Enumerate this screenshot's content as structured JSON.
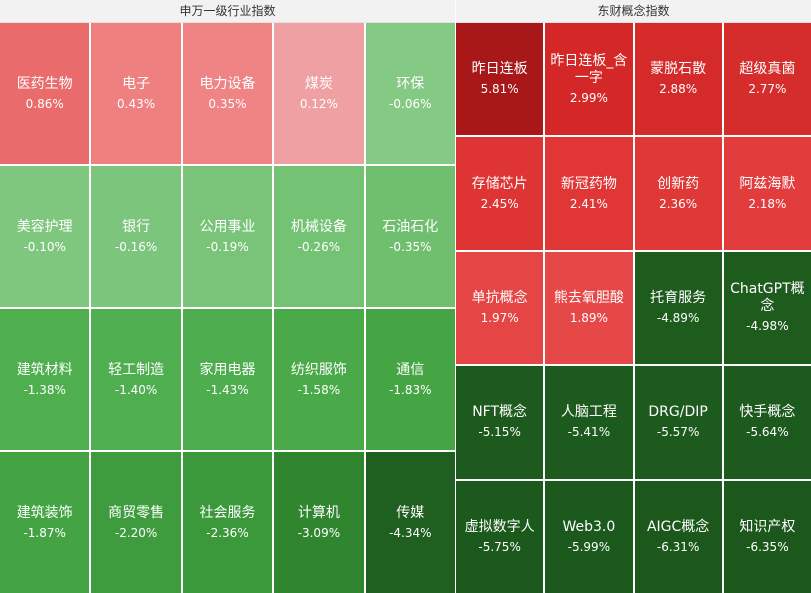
{
  "left_panel": {
    "title": "申万一级行业指数",
    "tiles": [
      {
        "name": "医药生物",
        "pct": "0.86%",
        "color": "#ea6b6b"
      },
      {
        "name": "电子",
        "pct": "0.43%",
        "color": "#ef8080"
      },
      {
        "name": "电力设备",
        "pct": "0.35%",
        "color": "#f08484"
      },
      {
        "name": "煤炭",
        "pct": "0.12%",
        "color": "#eea0a3"
      },
      {
        "name": "环保",
        "pct": "-0.06%",
        "color": "#84c984"
      },
      {
        "name": "美容护理",
        "pct": "-0.10%",
        "color": "#7fc77f"
      },
      {
        "name": "银行",
        "pct": "-0.16%",
        "color": "#7cc57c"
      },
      {
        "name": "公用事业",
        "pct": "-0.19%",
        "color": "#79c479"
      },
      {
        "name": "机械设备",
        "pct": "-0.26%",
        "color": "#74c274"
      },
      {
        "name": "石油石化",
        "pct": "-0.35%",
        "color": "#6fbf6f"
      },
      {
        "name": "建筑材料",
        "pct": "-1.38%",
        "color": "#4faf4f"
      },
      {
        "name": "轻工制造",
        "pct": "-1.40%",
        "color": "#4fae4f"
      },
      {
        "name": "家用电器",
        "pct": "-1.43%",
        "color": "#4ead4e"
      },
      {
        "name": "纺织服饰",
        "pct": "-1.58%",
        "color": "#4aaa4a"
      },
      {
        "name": "通信",
        "pct": "-1.83%",
        "color": "#45a545"
      },
      {
        "name": "建筑装饰",
        "pct": "-1.87%",
        "color": "#44a444"
      },
      {
        "name": "商贸零售",
        "pct": "-2.20%",
        "color": "#3e9c3e"
      },
      {
        "name": "社会服务",
        "pct": "-2.36%",
        "color": "#3b983b"
      },
      {
        "name": "计算机",
        "pct": "-3.09%",
        "color": "#2f862f"
      },
      {
        "name": "传媒",
        "pct": "-4.34%",
        "color": "#1f5f1f"
      }
    ]
  },
  "right_panel": {
    "title": "东财概念指数",
    "tiles": [
      {
        "name": "昨日连板",
        "pct": "5.81%",
        "color": "#a81818"
      },
      {
        "name": "昨日连板_含一字",
        "pct": "2.99%",
        "color": "#d42828"
      },
      {
        "name": "蒙脱石散",
        "pct": "2.88%",
        "color": "#d42a2a"
      },
      {
        "name": "超级真菌",
        "pct": "2.77%",
        "color": "#d52c2c"
      },
      {
        "name": "存储芯片",
        "pct": "2.45%",
        "color": "#df3434"
      },
      {
        "name": "新冠药物",
        "pct": "2.41%",
        "color": "#e03636"
      },
      {
        "name": "创新药",
        "pct": "2.36%",
        "color": "#e03737"
      },
      {
        "name": "阿兹海默",
        "pct": "2.18%",
        "color": "#e23c3c"
      },
      {
        "name": "单抗概念",
        "pct": "1.97%",
        "color": "#e64545"
      },
      {
        "name": "熊去氧胆酸",
        "pct": "1.89%",
        "color": "#e64848"
      },
      {
        "name": "托育服务",
        "pct": "-4.89%",
        "color": "#1e5c1e"
      },
      {
        "name": "ChatGPT概念",
        "pct": "-4.98%",
        "color": "#1e5c1e"
      },
      {
        "name": "NFT概念",
        "pct": "-5.15%",
        "color": "#1d5a1d"
      },
      {
        "name": "人脑工程",
        "pct": "-5.41%",
        "color": "#1d5a1d"
      },
      {
        "name": "DRG/DIP",
        "pct": "-5.57%",
        "color": "#1d5a1d"
      },
      {
        "name": "快手概念",
        "pct": "-5.64%",
        "color": "#1d5a1d"
      },
      {
        "name": "虚拟数字人",
        "pct": "-5.75%",
        "color": "#1c591c"
      },
      {
        "name": "Web3.0",
        "pct": "-5.99%",
        "color": "#1c591c"
      },
      {
        "name": "AIGC概念",
        "pct": "-6.31%",
        "color": "#1c581c"
      },
      {
        "name": "知识产权",
        "pct": "-6.35%",
        "color": "#1c581c"
      }
    ]
  }
}
